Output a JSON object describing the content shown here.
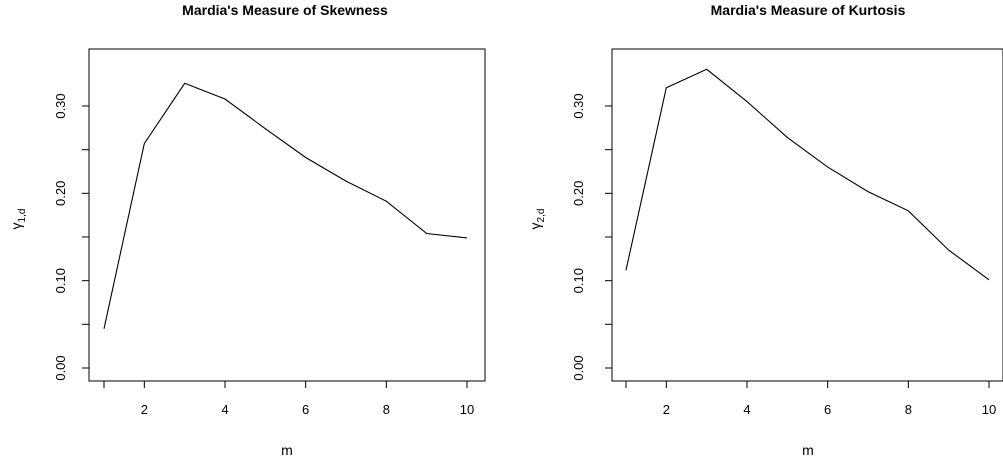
{
  "chart_data": [
    {
      "type": "line",
      "title": "Mardia's Measure of Skewness",
      "xlabel": "m",
      "ylabel": {
        "base": "γ",
        "sub": "1,d"
      },
      "xlim": [
        1,
        10
      ],
      "ylim": [
        0,
        0.35
      ],
      "xticks": [
        "2",
        "4",
        "6",
        "8",
        "10"
      ],
      "yticks": [
        "0.00",
        "0.10",
        "0.20",
        "0.30"
      ],
      "x": [
        1,
        2,
        3,
        4,
        5,
        6,
        7,
        8,
        9,
        10
      ],
      "y": [
        0.045,
        0.257,
        0.326,
        0.308,
        0.274,
        0.241,
        0.214,
        0.191,
        0.154,
        0.149
      ],
      "grid": false
    },
    {
      "type": "line",
      "title": "Mardia's Measure of Kurtosis",
      "xlabel": "m",
      "ylabel": {
        "base": "γ",
        "sub": "2,d"
      },
      "xlim": [
        1,
        10
      ],
      "ylim": [
        0,
        0.35
      ],
      "xticks": [
        "2",
        "4",
        "6",
        "8",
        "10"
      ],
      "yticks": [
        "0.00",
        "0.10",
        "0.20",
        "0.30"
      ],
      "x": [
        1,
        2,
        3,
        4,
        5,
        6,
        7,
        8,
        9,
        10
      ],
      "y": [
        0.112,
        0.321,
        0.342,
        0.305,
        0.264,
        0.23,
        0.202,
        0.18,
        0.135,
        0.101
      ],
      "grid": false
    }
  ]
}
